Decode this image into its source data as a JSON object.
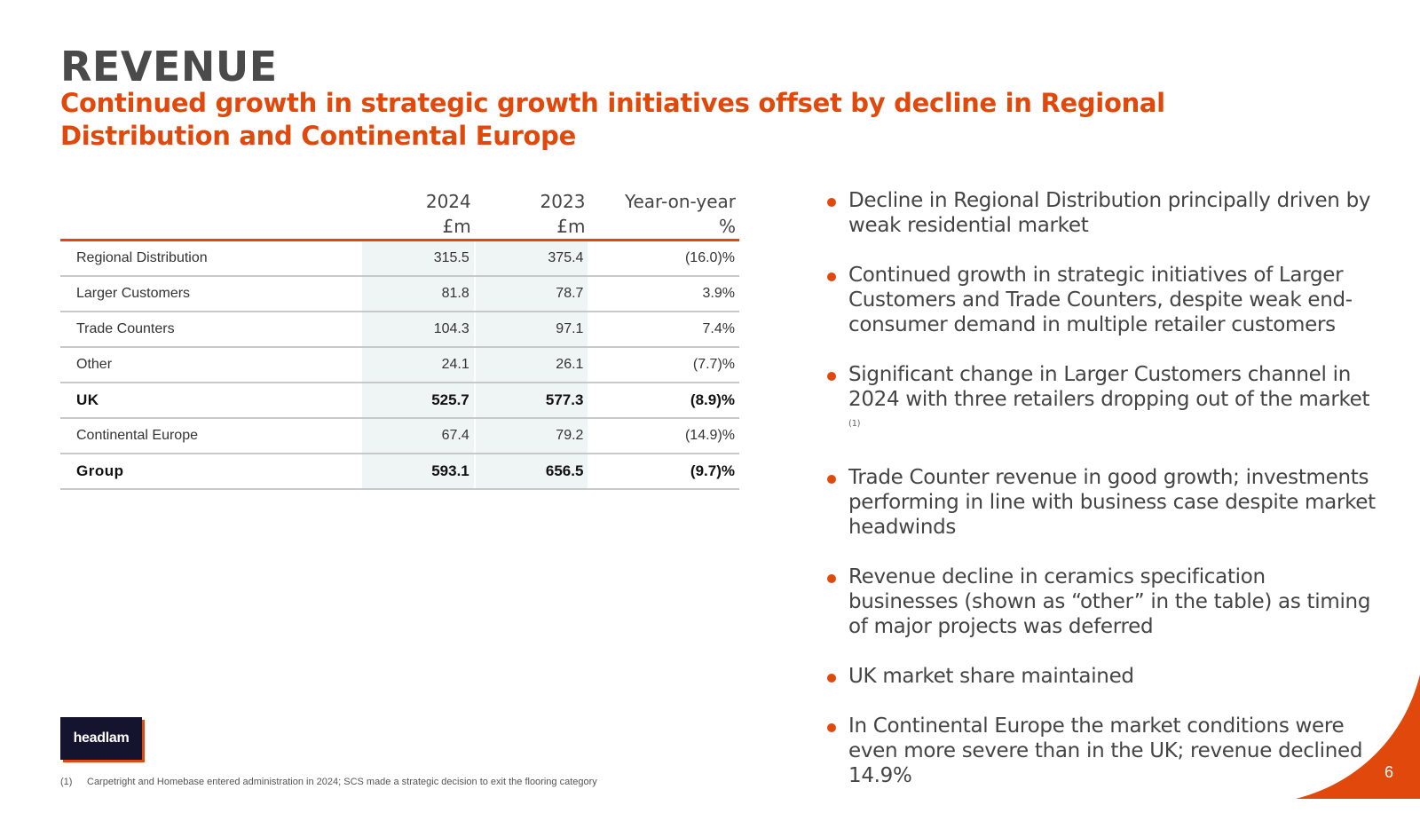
{
  "header": {
    "title": "REVENUE",
    "subtitle": "Continued growth in strategic growth initiatives offset by decline in Regional Distribution and Continental Europe"
  },
  "table": {
    "columns": [
      {
        "year": "2024",
        "unit": "£m"
      },
      {
        "year": "2023",
        "unit": "£m"
      },
      {
        "year": "Year-on-year",
        "unit": "%"
      }
    ],
    "rows": [
      {
        "label": "Regional Distribution",
        "v2024": "315.5",
        "v2023": "375.4",
        "yoy": "(16.0)%",
        "bold": false
      },
      {
        "label": "Larger Customers",
        "v2024": "81.8",
        "v2023": "78.7",
        "yoy": "3.9%",
        "bold": false
      },
      {
        "label": "Trade Counters",
        "v2024": "104.3",
        "v2023": "97.1",
        "yoy": "7.4%",
        "bold": false
      },
      {
        "label": "Other",
        "v2024": "24.1",
        "v2023": "26.1",
        "yoy": "(7.7)%",
        "bold": false
      },
      {
        "label": "UK",
        "v2024": "525.7",
        "v2023": "577.3",
        "yoy": "(8.9)%",
        "bold": true
      },
      {
        "label": "Continental Europe",
        "v2024": "67.4",
        "v2023": "79.2",
        "yoy": "(14.9)%",
        "bold": false
      },
      {
        "label": "Group",
        "v2024": "593.1",
        "v2023": "656.5",
        "yoy": "(9.7)%",
        "bold": true
      }
    ]
  },
  "bullets": [
    {
      "text": "Decline in Regional Distribution principally driven by weak residential market"
    },
    {
      "text": "Continued growth in strategic initiatives of Larger Customers and Trade Counters, despite weak end-consumer demand in multiple retailer customers"
    },
    {
      "text": "Significant change in Larger Customers channel in 2024 with three retailers dropping out of the market",
      "sup": "(1)"
    },
    {
      "text": "Trade Counter revenue in good growth; investments performing in line with business case despite market headwinds"
    },
    {
      "text": "Revenue decline in ceramics specification businesses (shown as “other” in the table) as timing of major projects was deferred"
    },
    {
      "text": "UK market share maintained"
    },
    {
      "text": "In Continental Europe the market conditions were even more severe than in the UK; revenue declined 14.9%"
    }
  ],
  "logo": {
    "text": "headlam"
  },
  "footnote": {
    "number": "(1)",
    "text": "Carpetright and Homebase entered administration in 2024; SCS made a strategic decision to exit the flooring category"
  },
  "page_number": "6",
  "colors": {
    "accent": "#e0480c",
    "title": "#4a4a4a",
    "logo_bg": "#14142e",
    "table_shade": "#eef5f4"
  }
}
